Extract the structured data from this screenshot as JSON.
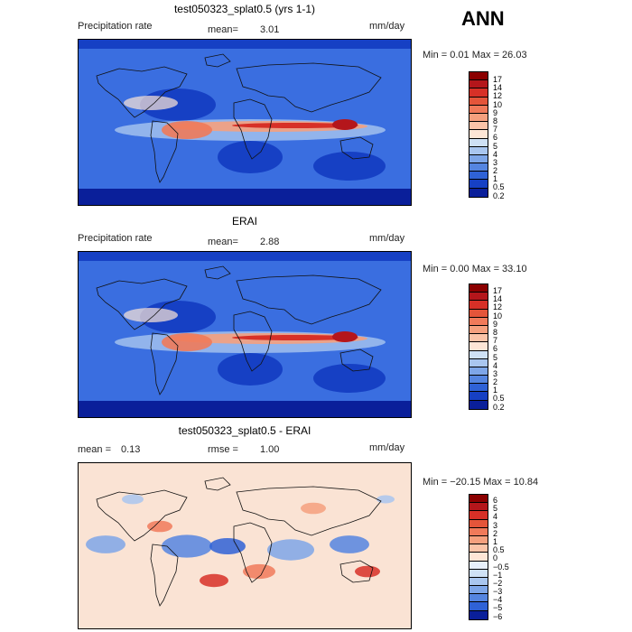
{
  "season": "ANN",
  "chart_data": [
    {
      "type": "heatmap",
      "title": "test050323_splat0.5 (yrs 1-1)",
      "left_label": "Precipitation rate",
      "mean_label": "mean=",
      "mean_value": "3.01",
      "units": "mm/day",
      "minmax": "Min =   0.01 Max =  26.03",
      "levels": [
        "17",
        "14",
        "12",
        "10",
        "9",
        "8",
        "7",
        "6",
        "5",
        "4",
        "3",
        "2",
        "1",
        "0.5",
        "0.2"
      ],
      "colors": [
        "#8b0000",
        "#b4161b",
        "#d73027",
        "#e4553a",
        "#f07a5a",
        "#f5a07e",
        "#fbc4a8",
        "#fde6d6",
        "#cfe1f5",
        "#a9c6ef",
        "#7ea6e8",
        "#5585e0",
        "#2f62d6",
        "#1640c4",
        "#0a1f9a"
      ]
    },
    {
      "type": "heatmap",
      "title": "ERAI",
      "left_label": "Precipitation rate",
      "mean_label": "mean=",
      "mean_value": "2.88",
      "units": "mm/day",
      "minmax": "Min =   0.00 Max =  33.10",
      "levels": [
        "17",
        "14",
        "12",
        "10",
        "9",
        "8",
        "7",
        "6",
        "5",
        "4",
        "3",
        "2",
        "1",
        "0.5",
        "0.2"
      ],
      "colors": [
        "#8b0000",
        "#b4161b",
        "#d73027",
        "#e4553a",
        "#f07a5a",
        "#f5a07e",
        "#fbc4a8",
        "#fde6d6",
        "#cfe1f5",
        "#a9c6ef",
        "#7ea6e8",
        "#5585e0",
        "#2f62d6",
        "#1640c4",
        "#0a1f9a"
      ]
    },
    {
      "type": "heatmap",
      "title": "test050323_splat0.5 - ERAI",
      "mean_label": "mean =",
      "mean_value": "0.13",
      "rmse_label": "rmse =",
      "rmse_value": "1.00",
      "units": "mm/day",
      "minmax": "Min = −20.15 Max =  10.84",
      "levels": [
        "6",
        "5",
        "4",
        "3",
        "2",
        "1",
        "0.5",
        "0",
        "−0.5",
        "−1",
        "−2",
        "−3",
        "−4",
        "−5",
        "−6"
      ],
      "colors": [
        "#8b0000",
        "#b4161b",
        "#d73027",
        "#e4553a",
        "#f07a5a",
        "#f5a07e",
        "#fbc4a8",
        "#fde6d6",
        "#e8f0fb",
        "#cfe1f5",
        "#a9c6ef",
        "#7ea6e8",
        "#5585e0",
        "#2f62d6",
        "#0a1f9a"
      ]
    }
  ]
}
